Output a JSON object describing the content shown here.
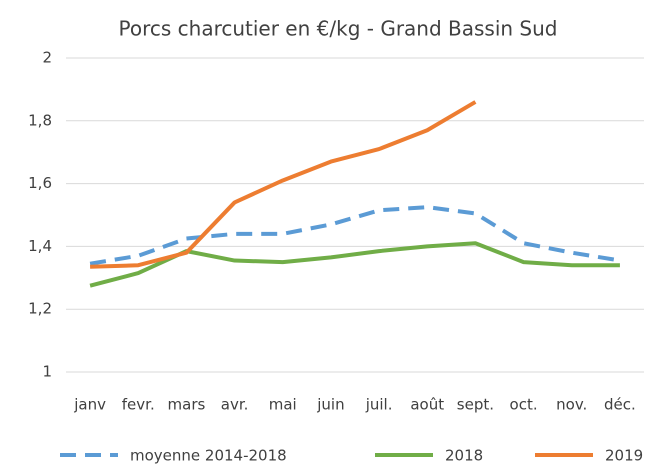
{
  "chart_data": {
    "type": "line",
    "title": "Porcs charcutier en €/kg - Grand Bassin Sud",
    "categories": [
      "janv",
      "fevr.",
      "mars",
      "avr.",
      "mai",
      "juin",
      "juil.",
      "août",
      "sept.",
      "oct.",
      "nov.",
      "déc."
    ],
    "series": [
      {
        "name": "moyenne 2014-2018",
        "color": "#5b9bd5",
        "dashed": true,
        "values": [
          1.345,
          1.37,
          1.425,
          1.44,
          1.44,
          1.47,
          1.515,
          1.525,
          1.505,
          1.41,
          1.38,
          1.355
        ]
      },
      {
        "name": "2018",
        "color": "#70ad47",
        "dashed": false,
        "values": [
          1.275,
          1.315,
          1.385,
          1.355,
          1.35,
          1.365,
          1.385,
          1.4,
          1.41,
          1.35,
          1.34,
          1.34
        ]
      },
      {
        "name": "2019",
        "color": "#ed7d31",
        "dashed": false,
        "values": [
          1.335,
          1.34,
          1.38,
          1.54,
          1.61,
          1.67,
          1.71,
          1.77,
          1.86,
          null,
          null,
          null
        ]
      }
    ],
    "ylim": [
      1,
      2
    ],
    "yticks": [
      1,
      {
        "value": 1.2,
        "label": "1,2"
      },
      {
        "value": 1.4,
        "label": "1,4"
      },
      {
        "value": 1.6,
        "label": "1,6"
      },
      {
        "value": 1.8,
        "label": "1,8"
      },
      2
    ],
    "grid": true,
    "legend": "bottom"
  }
}
